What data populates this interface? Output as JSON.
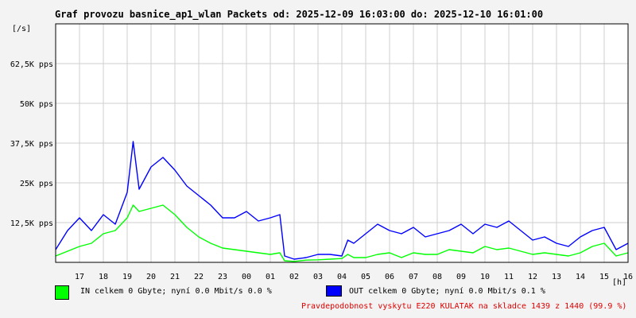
{
  "title": "Graf provozu basnice_ap1_wlan Packets od: 2025-12-09 16:03:00 do: 2025-12-10 16:01:00",
  "y_unit": "[/s]",
  "x_unit": "[h]",
  "colors": {
    "in": "#00ff00",
    "out": "#0000ff",
    "grid": "#cfcfcf",
    "note": "#e00000"
  },
  "legend": {
    "in": "IN celkem 0 Gbyte; nyní   0.0 Mbit/s 0.0 %",
    "out": "OUT celkem 0 Gbyte; nyní   0.0 Mbit/s 0.1 %"
  },
  "note": "Pravdepodobnost vyskytu E220 KULATAK na skladce 1439 z 1440 (99.9 %)",
  "chart_data": {
    "type": "line",
    "title": "Graf provozu basnice_ap1_wlan Packets od: 2025-12-09 16:03:00 do: 2025-12-10 16:01:00",
    "ylabel": "[/s]",
    "xlabel": "[h]",
    "ylim": [
      0,
      75000
    ],
    "grid": true,
    "legend_position": "bottom",
    "ytick_labels": [
      "12,5K pps",
      "25K pps",
      "37,5K pps",
      "50K pps",
      "62,5K pps"
    ],
    "ytick_values": [
      12500,
      25000,
      37500,
      50000,
      62500
    ],
    "xtick_labels": [
      "17",
      "18",
      "19",
      "20",
      "21",
      "22",
      "23",
      "00",
      "01",
      "02",
      "03",
      "04",
      "05",
      "06",
      "07",
      "08",
      "09",
      "10",
      "11",
      "12",
      "13",
      "14",
      "15",
      "16"
    ],
    "x_hours": [
      16,
      16.5,
      17,
      17.5,
      18,
      18.5,
      19,
      19.25,
      19.5,
      20,
      20.5,
      21,
      21.5,
      22,
      22.5,
      23,
      23.5,
      24,
      24.5,
      25,
      25.4,
      25.6,
      26,
      26.5,
      27,
      27.5,
      28,
      28.25,
      28.5,
      29,
      29.5,
      30,
      30.5,
      31,
      31.5,
      32,
      32.5,
      33,
      33.5,
      34,
      34.5,
      35,
      35.5,
      36,
      36.5,
      37,
      37.5,
      38,
      38.5,
      39,
      39.5,
      40
    ],
    "series": [
      {
        "name": "IN",
        "values": [
          2000,
          3500,
          5000,
          6000,
          9000,
          10000,
          14000,
          18000,
          16000,
          17000,
          18000,
          15000,
          11000,
          8000,
          6000,
          4500,
          4000,
          3500,
          3000,
          2500,
          3000,
          500,
          300,
          700,
          800,
          1000,
          1200,
          2500,
          1500,
          1500,
          2500,
          3000,
          1500,
          3000,
          2500,
          2500,
          4000,
          3500,
          3000,
          5000,
          4000,
          4500,
          3500,
          2500,
          3000,
          2500,
          2000,
          3000,
          5000,
          6000,
          2000,
          3000
        ]
      },
      {
        "name": "OUT",
        "values": [
          4000,
          10000,
          14000,
          10000,
          15000,
          12000,
          22000,
          38000,
          23000,
          30000,
          33000,
          29000,
          24000,
          21000,
          18000,
          14000,
          14000,
          16000,
          13000,
          14000,
          15000,
          2000,
          1000,
          1500,
          2500,
          2500,
          2000,
          7000,
          6000,
          9000,
          12000,
          10000,
          9000,
          11000,
          8000,
          9000,
          10000,
          12000,
          9000,
          12000,
          11000,
          13000,
          10000,
          7000,
          8000,
          6000,
          5000,
          8000,
          10000,
          11000,
          4000,
          6000
        ]
      }
    ]
  }
}
